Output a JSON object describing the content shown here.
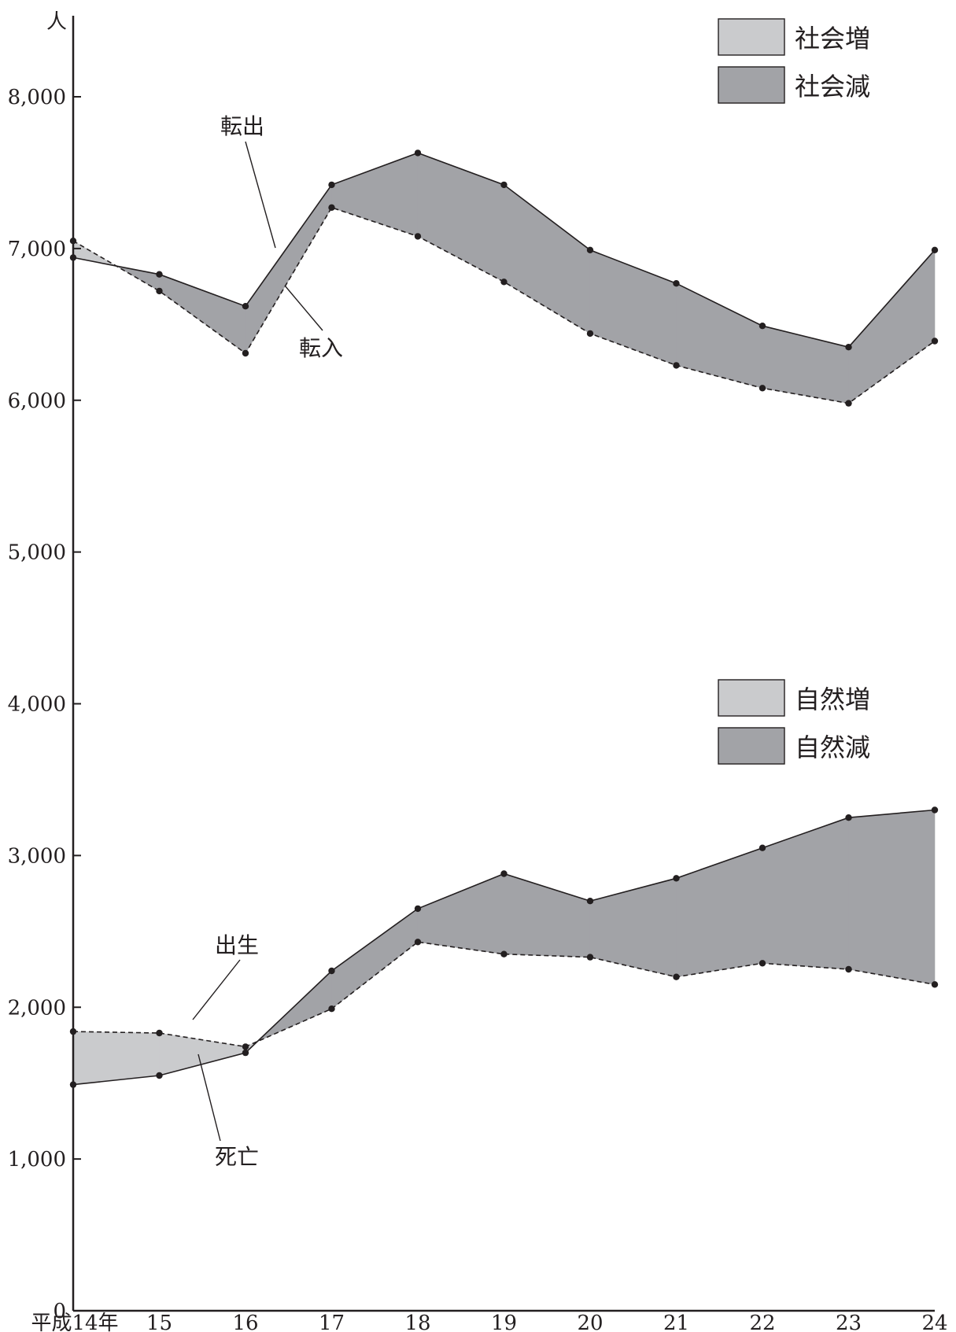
{
  "chart_data": [
    {
      "type": "area",
      "panel": "social",
      "categories": [
        "平成14年",
        "15",
        "16",
        "17",
        "18",
        "19",
        "20",
        "21",
        "22",
        "23",
        "24"
      ],
      "series": [
        {
          "name": "転出",
          "style": "solid",
          "values": [
            6940,
            6830,
            6620,
            7420,
            7630,
            7420,
            6990,
            6770,
            6490,
            6350,
            6990
          ]
        },
        {
          "name": "転入",
          "style": "dashed",
          "values": [
            7050,
            6720,
            6310,
            7270,
            7080,
            6780,
            6440,
            6230,
            6080,
            5980,
            6390
          ]
        }
      ],
      "legend": [
        {
          "label": "社会増",
          "color": "#cacbcd"
        },
        {
          "label": "社会減",
          "color": "#a2a3a7"
        }
      ],
      "legend_position": "top-right"
    },
    {
      "type": "area",
      "panel": "natural",
      "categories": [
        "平成14年",
        "15",
        "16",
        "17",
        "18",
        "19",
        "20",
        "21",
        "22",
        "23",
        "24"
      ],
      "series": [
        {
          "name": "出生",
          "style": "dashed",
          "values": [
            1840,
            1830,
            1740,
            1990,
            2430,
            2350,
            2330,
            2200,
            2290,
            2250,
            2150
          ]
        },
        {
          "name": "死亡",
          "style": "solid",
          "values": [
            1490,
            1550,
            1700,
            2240,
            2650,
            2880,
            2700,
            2850,
            3050,
            3250,
            3300
          ]
        }
      ],
      "legend": [
        {
          "label": "自然増",
          "color": "#cacbcd"
        },
        {
          "label": "自然減",
          "color": "#a2a3a7"
        }
      ],
      "legend_position": "right"
    }
  ],
  "axis": {
    "unit": "人",
    "ylim": [
      0,
      8600
    ],
    "yticks": [
      0,
      1000,
      2000,
      3000,
      4000,
      5000,
      6000,
      7000,
      8000
    ],
    "ytick_labels": [
      "0",
      "1,000",
      "2,000",
      "3,000",
      "4,000",
      "5,000",
      "6,000",
      "7,000",
      "8,000"
    ],
    "grid": false
  },
  "colors": {
    "increase": "#cacbcd",
    "decrease": "#a2a3a7",
    "line": "#231f20"
  }
}
